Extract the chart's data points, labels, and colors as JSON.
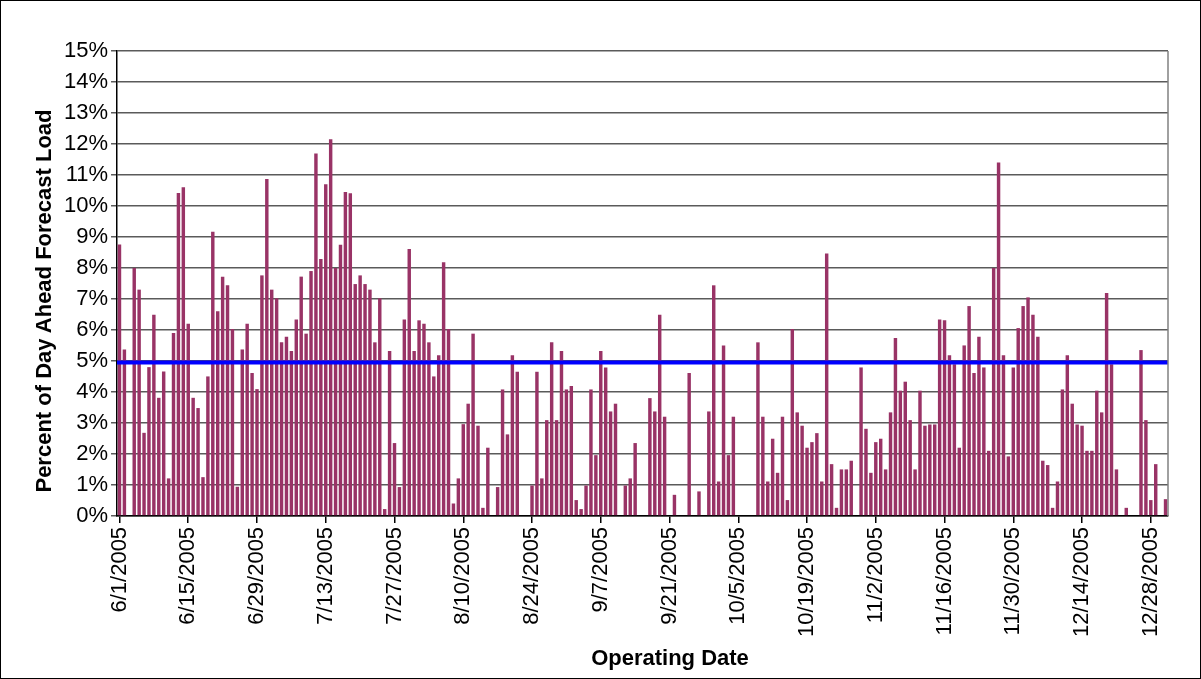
{
  "chart_data": {
    "type": "bar",
    "xlabel": "Operating Date",
    "ylabel": "Percent of Day Ahead Forecast Load",
    "categories": [
      "6/1/2005",
      null,
      null,
      null,
      null,
      null,
      null,
      null,
      null,
      null,
      null,
      null,
      null,
      null,
      "6/15/2005",
      null,
      null,
      null,
      null,
      null,
      null,
      null,
      null,
      null,
      null,
      null,
      null,
      null,
      "6/29/2005",
      null,
      null,
      null,
      null,
      null,
      null,
      null,
      null,
      null,
      null,
      null,
      null,
      null,
      "7/13/2005",
      null,
      null,
      null,
      null,
      null,
      null,
      null,
      null,
      null,
      null,
      null,
      null,
      null,
      "7/27/2005",
      null,
      null,
      null,
      null,
      null,
      null,
      null,
      null,
      null,
      null,
      null,
      null,
      null,
      "8/10/2005",
      null,
      null,
      null,
      null,
      null,
      null,
      null,
      null,
      null,
      null,
      null,
      null,
      null,
      "8/24/2005",
      null,
      null,
      null,
      null,
      null,
      null,
      null,
      null,
      null,
      null,
      null,
      null,
      null,
      "9/7/2005",
      null,
      null,
      null,
      null,
      null,
      null,
      null,
      null,
      null,
      null,
      null,
      null,
      null,
      "9/21/2005",
      null,
      null,
      null,
      null,
      null,
      null,
      null,
      null,
      null,
      null,
      null,
      null,
      null,
      "10/5/2005",
      null,
      null,
      null,
      null,
      null,
      null,
      null,
      null,
      null,
      null,
      null,
      null,
      null,
      "10/19/2005",
      null,
      null,
      null,
      null,
      null,
      null,
      null,
      null,
      null,
      null,
      null,
      null,
      null,
      "11/2/2005",
      null,
      null,
      null,
      null,
      null,
      null,
      null,
      null,
      null,
      null,
      null,
      null,
      null,
      "11/16/2005",
      null,
      null,
      null,
      null,
      null,
      null,
      null,
      null,
      null,
      null,
      null,
      null,
      null,
      "11/30/2005",
      null,
      null,
      null,
      null,
      null,
      null,
      null,
      null,
      null,
      null,
      null,
      null,
      null,
      "12/14/2005",
      null,
      null,
      null,
      null,
      null,
      null,
      null,
      null,
      null,
      null,
      null,
      null,
      null,
      "12/28/2005",
      null,
      null,
      null
    ],
    "values": [
      8.76,
      5.37,
      0,
      8.0,
      7.3,
      2.68,
      4.8,
      6.49,
      3.81,
      4.66,
      1.21,
      5.9,
      10.42,
      10.6,
      6.2,
      3.81,
      3.48,
      1.25,
      4.5,
      9.17,
      6.6,
      7.72,
      7.44,
      6.03,
      0.94,
      5.37,
      6.2,
      4.61,
      4.09,
      7.76,
      10.87,
      7.3,
      7.02,
      5.6,
      5.78,
      5.32,
      6.34,
      7.72,
      5.88,
      7.9,
      11.69,
      8.29,
      10.7,
      12.15,
      8.0,
      8.75,
      10.45,
      10.41,
      7.48,
      7.76,
      7.48,
      7.3,
      5.6,
      7.02,
      0.22,
      5.32,
      2.35,
      0.93,
      6.34,
      8.61,
      5.32,
      6.31,
      6.2,
      5.6,
      4.5,
      5.18,
      8.18,
      6.03,
      0.4,
      1.21,
      2.96,
      3.62,
      5.88,
      2.91,
      0.26,
      2.2,
      0,
      0.93,
      4.08,
      2.63,
      5.18,
      4.65,
      0,
      0,
      0.98,
      4.65,
      1.21,
      3.09,
      5.6,
      3.09,
      5.32,
      4.08,
      4.19,
      0.51,
      0.22,
      0.98,
      4.08,
      1.96,
      5.32,
      4.79,
      3.37,
      3.62,
      0,
      0.98,
      1.21,
      2.35,
      0,
      0,
      3.8,
      3.37,
      6.49,
      3.2,
      0,
      0.68,
      0,
      0,
      4.61,
      0,
      0.79,
      0,
      3.37,
      7.44,
      1.11,
      5.5,
      1.96,
      3.2,
      0,
      0,
      0,
      0,
      5.6,
      3.2,
      1.11,
      2.49,
      1.39,
      3.2,
      0.51,
      6.03,
      3.34,
      2.91,
      2.2,
      2.38,
      2.67,
      1.11,
      8.47,
      1.67,
      0.26,
      1.5,
      1.5,
      1.78,
      0,
      4.79,
      2.81,
      1.39,
      2.38,
      2.49,
      1.5,
      3.34,
      5.74,
      4.04,
      4.33,
      3.09,
      1.5,
      4.04,
      2.91,
      2.95,
      2.95,
      6.34,
      6.31,
      5.18,
      4.89,
      2.2,
      5.5,
      6.77,
      4.61,
      5.78,
      4.79,
      2.1,
      8.0,
      11.4,
      5.18,
      1.92,
      4.79,
      6.06,
      6.77,
      7.05,
      6.49,
      5.78,
      1.78,
      1.64,
      0.26,
      1.11,
      4.08,
      5.18,
      3.62,
      2.95,
      2.91,
      2.1,
      2.1,
      4.04,
      3.34,
      7.19,
      4.89,
      1.5,
      0,
      0.26,
      0,
      0,
      5.35,
      3.09,
      0.51,
      1.67,
      0,
      0.54
    ],
    "color": "#993366",
    "ylim": [
      0,
      15
    ],
    "yticks": [
      {
        "value": 0,
        "label": "0%"
      },
      {
        "value": 1,
        "label": "1%"
      },
      {
        "value": 2,
        "label": "2%"
      },
      {
        "value": 3,
        "label": "3%"
      },
      {
        "value": 4,
        "label": "4%"
      },
      {
        "value": 5,
        "label": "5%"
      },
      {
        "value": 6,
        "label": "6%"
      },
      {
        "value": 7,
        "label": "7%"
      },
      {
        "value": 8,
        "label": "8%"
      },
      {
        "value": 9,
        "label": "9%"
      },
      {
        "value": 10,
        "label": "10%"
      },
      {
        "value": 11,
        "label": "11%"
      },
      {
        "value": 12,
        "label": "12%"
      },
      {
        "value": 13,
        "label": "13%"
      },
      {
        "value": 14,
        "label": "14%"
      },
      {
        "value": 15,
        "label": "15%"
      }
    ],
    "ref_lines": [
      {
        "axis": "y",
        "value": 4.95,
        "color": "#0000ff"
      }
    ],
    "grid": "y",
    "legend": false
  }
}
